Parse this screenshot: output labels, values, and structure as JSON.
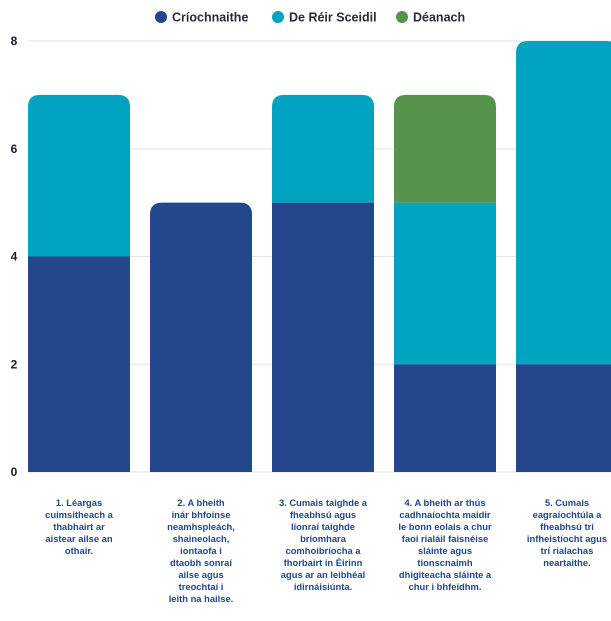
{
  "chart_data": {
    "type": "bar",
    "stacked": true,
    "categories": [
      "1.  Léargas cuimsitheach a thabhairt ar aistear ailse an othair.",
      "2. A bheith inár bhfoinse neamhspleách, shaineolach, iontaofa i dtaobh sonraí ailse agus treochtaí i leith na hailse.",
      "3. Cumais taighde a fheabhsú agus líonraí taighde bríomhara comhoibríocha a fhorbairt in Éirinn agus ar an leibhéal idirnáisiúnta.",
      "4. A bheith ar thús cadhnaíochta maidir le bonn eolais a chur faoi rialáil faisnéise sláinte agus tionscnaimh dhigiteacha sláinte a chur i bhfeidhm.",
      "5. Cumais eagraíochtúla a fheabhsú trí infheistíocht agus trí rialachas neartaithe."
    ],
    "category_lines": [
      [
        "1.  Léargas",
        "cuimsitheach a",
        "thabhairt ar",
        "aistear ailse an",
        "othair."
      ],
      [
        "2. A bheith",
        "inár bhfoinse",
        "neamhspleách,",
        "shaineolach,",
        "iontaofa i",
        "dtaobh sonraí",
        "ailse agus",
        "treochtaí i",
        "leith na hailse."
      ],
      [
        "3. Cumais taighde a",
        "fheabhsú agus",
        "líonraí taighde",
        "bríomhara",
        "comhoibríocha a",
        "fhorbairt in Éirinn",
        "agus ar an leibhéal",
        "idirnáisiúnta."
      ],
      [
        "4. A bheith ar thús",
        "cadhnaíochta maidir",
        "le bonn eolais a chur",
        "faoi rialáil faisnéise",
        "sláinte agus",
        "tionscnaimh",
        "dhigiteacha sláinte a",
        "chur i bhfeidhm."
      ],
      [
        "5. Cumais",
        "eagraíochtúla a",
        "fheabhsú trí",
        "infheistíocht agus",
        "trí rialachas",
        "neartaithe."
      ]
    ],
    "series": [
      {
        "name": "Críochnaithe",
        "color": "#24468d",
        "values": [
          4,
          5,
          5,
          2,
          2
        ]
      },
      {
        "name": "De Réir Sceidil",
        "color": "#00a3c0",
        "values": [
          3,
          0,
          2,
          3,
          6
        ]
      },
      {
        "name": "Déanach",
        "color": "#56944c",
        "values": [
          0,
          0,
          0,
          2,
          0
        ]
      }
    ],
    "ylim": [
      0,
      8
    ],
    "yticks": [
      0,
      2,
      4,
      6,
      8
    ],
    "title": "",
    "xlabel": "",
    "ylabel": "",
    "legend_position": "top-center",
    "grid": true
  }
}
